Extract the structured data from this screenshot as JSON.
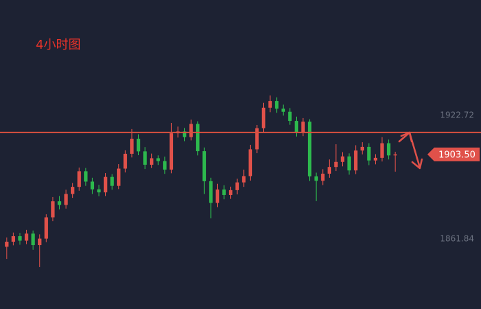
{
  "chart_data": {
    "type": "candlestick",
    "title": "4小时图",
    "open": [
      1858.0,
      1860.5,
      1863.2,
      1861.0,
      1864.5,
      1858.8,
      1862.0,
      1872.5,
      1880.4,
      1878.6,
      1884.0,
      1887.5,
      1895.2,
      1890.1,
      1886.3,
      1884.8,
      1892.4,
      1888.0,
      1896.5,
      1903.8,
      1911.2,
      1905.0,
      1898.4,
      1901.6,
      1900.2,
      1896.0,
      1913.9,
      1914.8,
      1912.0,
      1918.5,
      1905.1,
      1890.3,
      1879.6,
      1886.2,
      1883.5,
      1885.9,
      1889.7,
      1892.8,
      1906.0,
      1916.4,
      1926.5,
      1929.8,
      1926.0,
      1924.5,
      1920.0,
      1914.2,
      1919.6,
      1892.7,
      1890.5,
      1894.0,
      1897.3,
      1899.8,
      1902.5,
      1895.6,
      1905.4,
      1907.2,
      1900.5,
      1901.8,
      1909.0,
      1903.0
    ],
    "high": [
      1862.6,
      1865.0,
      1864.8,
      1866.3,
      1866.0,
      1864.1,
      1874.0,
      1882.5,
      1883.0,
      1886.1,
      1889.4,
      1897.0,
      1896.8,
      1892.0,
      1888.5,
      1894.3,
      1893.8,
      1898.7,
      1905.5,
      1916.0,
      1913.4,
      1907.1,
      1903.9,
      1903.0,
      1902.4,
      1919.0,
      1917.2,
      1916.5,
      1920.6,
      1919.8,
      1906.9,
      1892.0,
      1889.0,
      1888.3,
      1887.6,
      1891.5,
      1896.0,
      1908.2,
      1918.0,
      1928.9,
      1932.5,
      1931.6,
      1928.0,
      1926.3,
      1922.1,
      1921.4,
      1920.8,
      1894.5,
      1896.2,
      1901.0,
      1908.5,
      1904.6,
      1904.0,
      1908.0,
      1909.5,
      1909.0,
      1903.6,
      1912.0,
      1910.8,
      1904.8
    ],
    "low": [
      1852.0,
      1858.7,
      1859.0,
      1859.3,
      1856.5,
      1848.0,
      1860.3,
      1870.6,
      1876.4,
      1876.8,
      1882.1,
      1885.6,
      1888.0,
      1884.0,
      1882.9,
      1883.0,
      1886.1,
      1886.4,
      1894.6,
      1902.0,
      1903.1,
      1896.3,
      1896.8,
      1898.3,
      1893.9,
      1894.2,
      1911.8,
      1910.0,
      1910.4,
      1903.0,
      1884.0,
      1872.0,
      1877.5,
      1881.4,
      1881.6,
      1883.8,
      1887.5,
      1890.6,
      1904.1,
      1914.5,
      1924.3,
      1924.0,
      1922.6,
      1918.1,
      1912.3,
      1912.5,
      1890.4,
      1880.5,
      1888.4,
      1892.0,
      1895.3,
      1897.6,
      1893.5,
      1893.8,
      1903.5,
      1898.2,
      1898.6,
      1900.0,
      1901.0,
      1895.0
    ],
    "close": [
      1860.5,
      1863.2,
      1861.0,
      1864.5,
      1858.8,
      1862.0,
      1872.5,
      1880.4,
      1878.6,
      1884.0,
      1887.5,
      1895.2,
      1890.1,
      1886.3,
      1884.8,
      1892.4,
      1888.0,
      1896.5,
      1903.8,
      1911.2,
      1905.0,
      1898.4,
      1901.6,
      1900.2,
      1896.0,
      1913.9,
      1914.8,
      1912.0,
      1918.5,
      1905.1,
      1890.3,
      1879.6,
      1886.2,
      1883.5,
      1885.9,
      1889.7,
      1892.8,
      1906.0,
      1916.4,
      1926.5,
      1929.8,
      1926.0,
      1924.5,
      1920.0,
      1914.2,
      1919.6,
      1892.7,
      1890.5,
      1894.0,
      1897.3,
      1899.8,
      1902.5,
      1895.6,
      1905.4,
      1907.2,
      1900.5,
      1901.8,
      1909.0,
      1903.0,
      1903.5
    ],
    "up_color": "#e0514a",
    "down_color": "#2db84d",
    "ylim": [
      1827.35,
      1979.54
    ],
    "yticks": [
      1922.72,
      1861.84
    ],
    "hline": {
      "value": 1914.3,
      "color": "#d9503f"
    },
    "last_price": {
      "value": 1903.5,
      "label": "1903.50",
      "color": "#e0514a"
    }
  }
}
